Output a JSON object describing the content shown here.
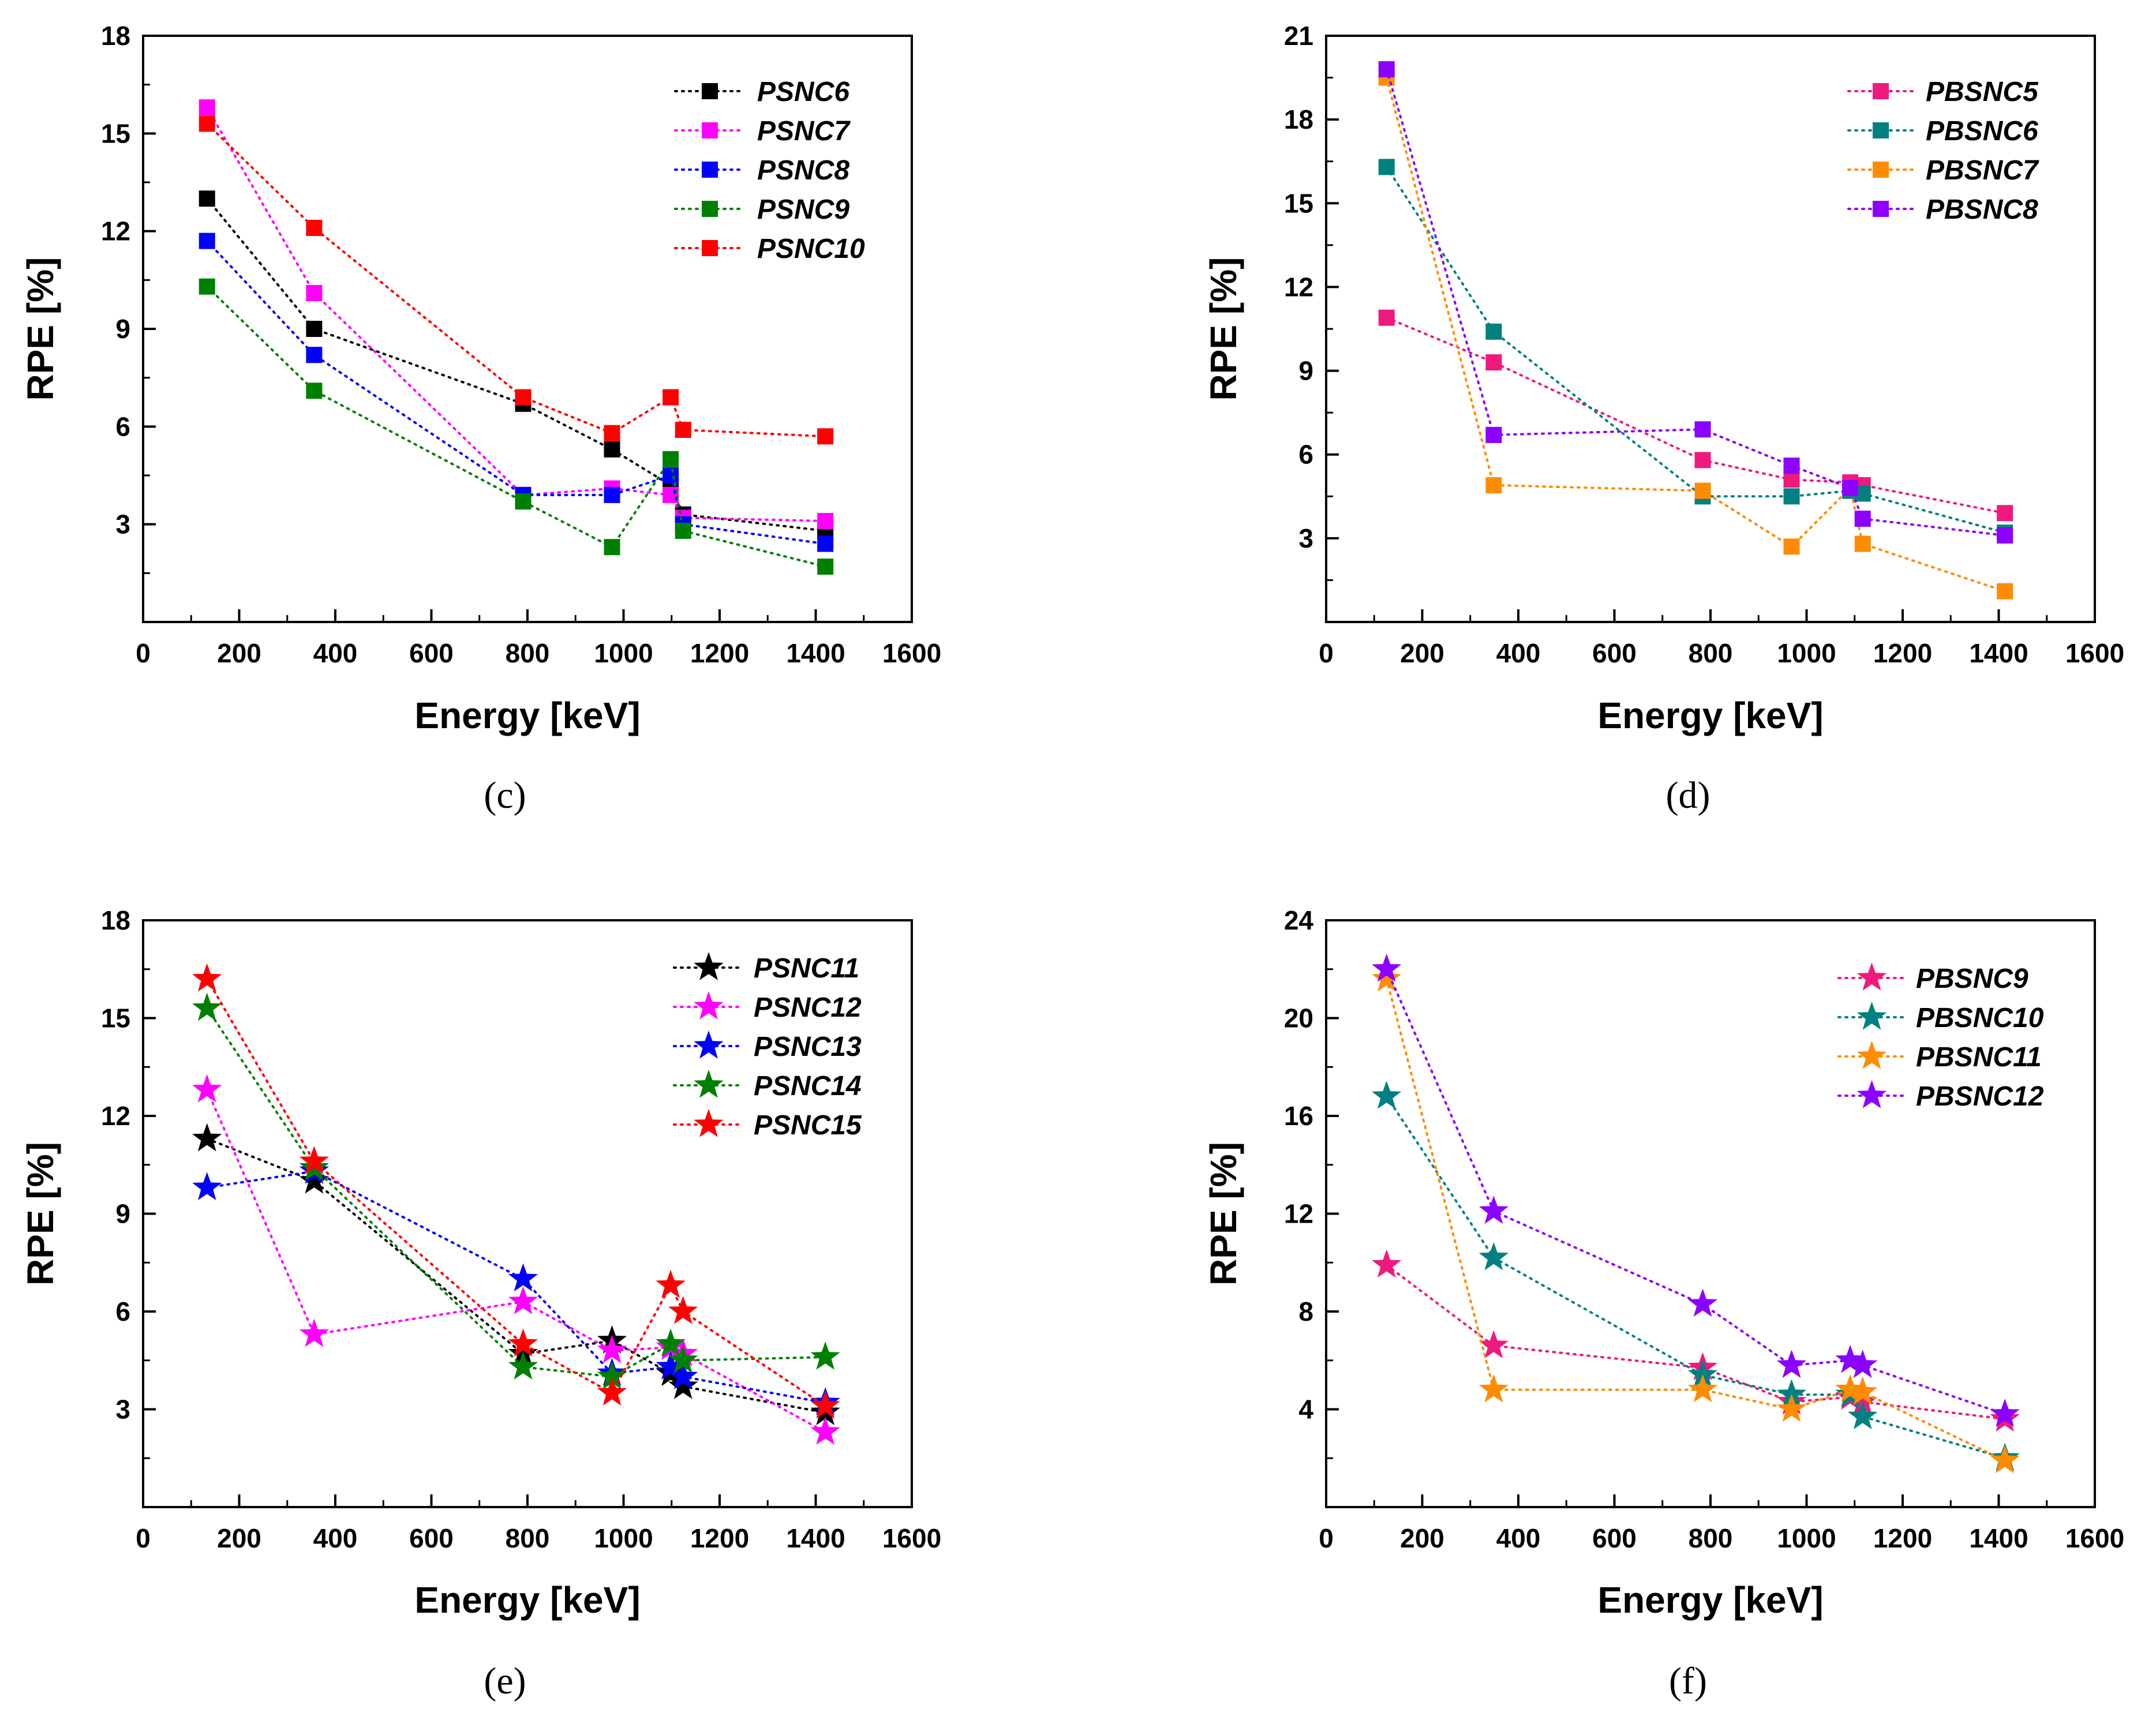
{
  "chart_data": [
    {
      "panel_label": "(c)",
      "type": "line",
      "marker": "square",
      "xlabel": "Energy [keV]",
      "ylabel": "RPE [%]",
      "xlim": [
        0,
        1600
      ],
      "ylim": [
        0,
        18
      ],
      "xticks": [
        0,
        200,
        400,
        600,
        800,
        1000,
        1200,
        1400,
        1600
      ],
      "yticks": [
        3,
        6,
        9,
        12,
        15,
        18
      ],
      "x": [
        121,
        344,
        779,
        964,
        1086,
        1112,
        1408
      ],
      "legend_position": "top-right",
      "series": [
        {
          "name": "PSNC6",
          "color": "#000000",
          "values": [
            13.0,
            9.0,
            6.7,
            5.3,
            4.2,
            3.3,
            2.8
          ]
        },
        {
          "name": "PSNC7",
          "color": "#ff00ff",
          "values": [
            15.8,
            10.1,
            3.9,
            4.1,
            3.9,
            3.2,
            3.1
          ]
        },
        {
          "name": "PSNC8",
          "color": "#0000ff",
          "values": [
            11.7,
            8.2,
            3.9,
            3.9,
            4.5,
            3.0,
            2.4
          ]
        },
        {
          "name": "PSNC9",
          "color": "#008000",
          "values": [
            10.3,
            7.1,
            3.7,
            2.3,
            5.0,
            2.8,
            1.7
          ]
        },
        {
          "name": "PSNC10",
          "color": "#ff0000",
          "values": [
            15.3,
            12.1,
            6.9,
            5.8,
            6.9,
            5.9,
            5.7
          ]
        }
      ]
    },
    {
      "panel_label": "(d)",
      "type": "line",
      "marker": "square",
      "xlabel": "Energy [keV]",
      "ylabel": "RPE [%]",
      "xlim": [
        0,
        1600
      ],
      "ylim": [
        0,
        21
      ],
      "xticks": [
        0,
        200,
        400,
        600,
        800,
        1000,
        1200,
        1400,
        1600
      ],
      "yticks": [
        3,
        6,
        9,
        12,
        15,
        18,
        21
      ],
      "x": [
        121,
        344,
        779,
        964,
        1086,
        1112,
        1408
      ],
      "legend_position": "top-right",
      "series": [
        {
          "name": "PBSNC5",
          "color": "#f0197d",
          "values": [
            10.9,
            9.3,
            5.8,
            5.1,
            5.0,
            4.9,
            3.9
          ]
        },
        {
          "name": "PBSNC6",
          "color": "#008080",
          "values": [
            16.3,
            10.4,
            4.5,
            4.5,
            4.7,
            4.6,
            3.2
          ]
        },
        {
          "name": "PBSNC7",
          "color": "#ff8c00",
          "values": [
            19.5,
            4.9,
            4.7,
            2.7,
            4.8,
            2.8,
            1.1
          ]
        },
        {
          "name": "PBSNC8",
          "color": "#8b00ff",
          "values": [
            19.8,
            6.7,
            6.9,
            5.6,
            4.8,
            3.7,
            3.1
          ]
        }
      ]
    },
    {
      "panel_label": "(e)",
      "type": "line",
      "marker": "star",
      "xlabel": "Energy [keV]",
      "ylabel": "RPE [%]",
      "xlim": [
        0,
        1600
      ],
      "ylim": [
        0,
        18
      ],
      "xticks": [
        0,
        200,
        400,
        600,
        800,
        1000,
        1200,
        1400,
        1600
      ],
      "yticks": [
        3,
        6,
        9,
        12,
        15,
        18
      ],
      "x": [
        121,
        344,
        779,
        964,
        1086,
        1112,
        1408
      ],
      "legend_position": "top-right",
      "series": [
        {
          "name": "PSNC11",
          "color": "#000000",
          "values": [
            11.3,
            10.0,
            4.7,
            5.1,
            4.1,
            3.7,
            2.9
          ]
        },
        {
          "name": "PSNC12",
          "color": "#ff00ff",
          "values": [
            12.8,
            5.3,
            6.3,
            4.8,
            4.9,
            4.7,
            2.3
          ]
        },
        {
          "name": "PSNC13",
          "color": "#0000ff",
          "values": [
            9.8,
            10.3,
            7.0,
            4.1,
            4.3,
            4.0,
            3.2
          ]
        },
        {
          "name": "PSNC14",
          "color": "#008000",
          "values": [
            15.3,
            10.4,
            4.3,
            4.0,
            5.0,
            4.5,
            4.6
          ]
        },
        {
          "name": "PSNC15",
          "color": "#ff0000",
          "values": [
            16.2,
            10.6,
            5.0,
            3.5,
            6.8,
            6.0,
            3.1
          ]
        }
      ]
    },
    {
      "panel_label": "(f)",
      "type": "line",
      "marker": "star",
      "xlabel": "Energy [keV]",
      "ylabel": "RPE [%]",
      "xlim": [
        0,
        1600
      ],
      "ylim": [
        0,
        24
      ],
      "xticks": [
        0,
        200,
        400,
        600,
        800,
        1000,
        1200,
        1400,
        1600
      ],
      "yticks": [
        4,
        8,
        12,
        16,
        20,
        24
      ],
      "x": [
        121,
        344,
        779,
        964,
        1086,
        1112,
        1408
      ],
      "legend_position": "top-right",
      "series": [
        {
          "name": "PBSNC9",
          "color": "#f0197d",
          "values": [
            9.9,
            6.6,
            5.7,
            4.3,
            4.5,
            4.3,
            3.6
          ]
        },
        {
          "name": "PBSNC10",
          "color": "#008080",
          "values": [
            16.8,
            10.2,
            5.4,
            4.6,
            4.6,
            3.7,
            2.0
          ]
        },
        {
          "name": "PBSNC11",
          "color": "#ff8c00",
          "values": [
            21.6,
            4.8,
            4.8,
            4.0,
            4.8,
            4.7,
            1.9
          ]
        },
        {
          "name": "PBSNC12",
          "color": "#8b00ff",
          "values": [
            22.0,
            12.1,
            8.3,
            5.8,
            6.0,
            5.8,
            3.8
          ]
        }
      ]
    }
  ]
}
